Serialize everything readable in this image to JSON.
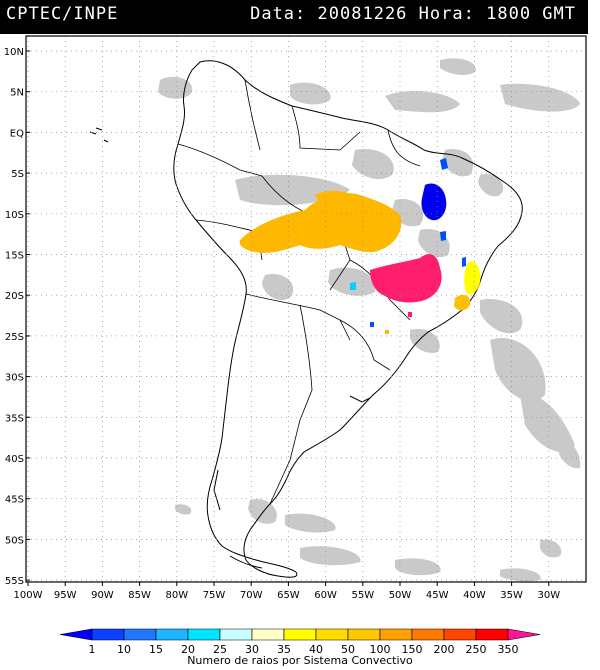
{
  "header": {
    "agency": "CPTEC/INPE",
    "date_label": "Data:",
    "date_value": "20081226",
    "hour_label": "Hora:",
    "hour_value": "1800 GMT"
  },
  "axes": {
    "lat_ticks": [
      "10N",
      "5N",
      "EQ",
      "5S",
      "10S",
      "15S",
      "20S",
      "25S",
      "30S",
      "35S",
      "40S",
      "45S",
      "50S",
      "55S"
    ],
    "lon_ticks": [
      "100W",
      "95W",
      "90W",
      "85W",
      "80W",
      "75W",
      "70W",
      "65W",
      "60W",
      "55W",
      "50W",
      "45W",
      "40W",
      "35W",
      "30W"
    ]
  },
  "colorbar": {
    "labels": [
      "1",
      "10",
      "15",
      "20",
      "25",
      "30",
      "35",
      "40",
      "50",
      "100",
      "150",
      "200",
      "250",
      "350"
    ],
    "colors": [
      "#0000ff",
      "#0a40ff",
      "#1e78ff",
      "#1eb4ff",
      "#00e6ff",
      "#c8ffff",
      "#ffffc8",
      "#ffff00",
      "#ffdc00",
      "#ffc800",
      "#ffa000",
      "#ff7800",
      "#ff4600",
      "#ff0000",
      "#ff1493"
    ],
    "caption": "Numero de raios por Sistema Convectivo"
  },
  "colors": {
    "cloud": "#c4c4c4",
    "coast": "#000000",
    "grid": "#8a8a8a"
  }
}
